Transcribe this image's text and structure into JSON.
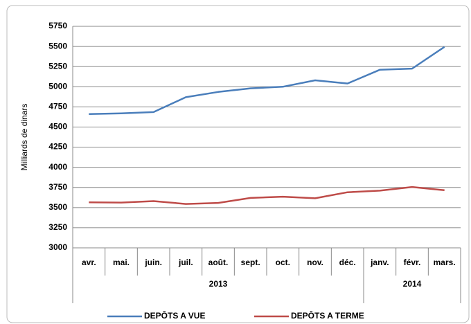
{
  "chart_data": {
    "type": "line",
    "y_label": "Milliards de dinars",
    "categories": [
      "avr.",
      "mai.",
      "juin.",
      "juil.",
      "août.",
      "sept.",
      "oct.",
      "nov.",
      "déc.",
      "janv.",
      "févr.",
      "mars."
    ],
    "groups": [
      {
        "label": "2013",
        "count": 9
      },
      {
        "label": "2014",
        "count": 3
      }
    ],
    "series": [
      {
        "name": "DEPÔTS A VUE",
        "color": "#4a7ebb",
        "values": [
          4660,
          4670,
          4685,
          4870,
          4935,
          4980,
          5000,
          5080,
          5040,
          5210,
          5225,
          5495
        ]
      },
      {
        "name": "DEPÔTS A TERME",
        "color": "#be4b48",
        "values": [
          3565,
          3562,
          3580,
          3545,
          3558,
          3620,
          3635,
          3615,
          3690,
          3710,
          3755,
          3715
        ]
      }
    ],
    "ylim": [
      3000,
      5750
    ],
    "yticks": [
      3000,
      3250,
      3500,
      3750,
      4000,
      4250,
      4500,
      4750,
      5000,
      5250,
      5500,
      5750
    ],
    "grid": true
  }
}
